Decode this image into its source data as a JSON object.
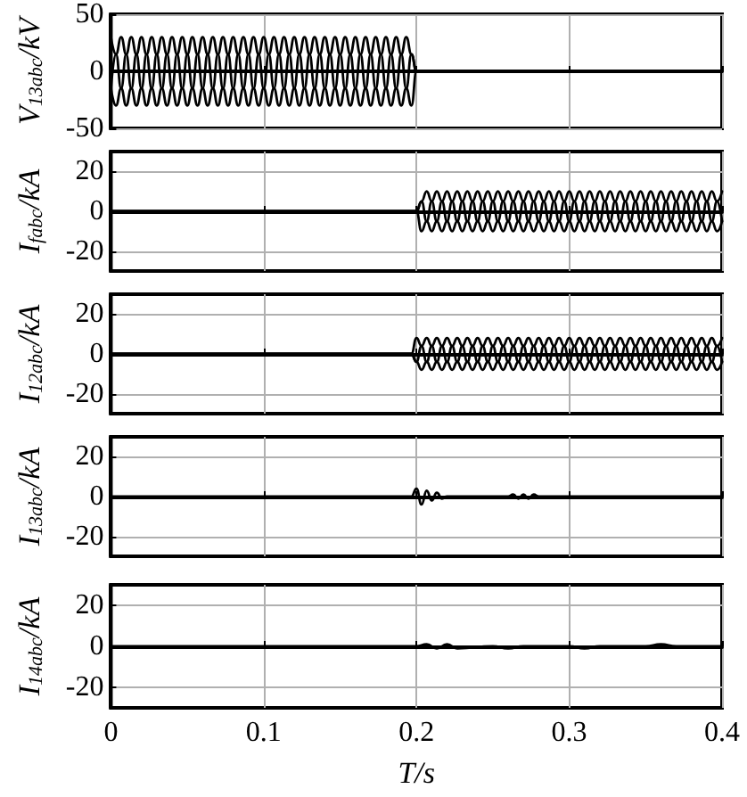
{
  "chart_data": [
    {
      "type": "line",
      "ylabel": "V$_{13abc}$/kV",
      "xlim": [
        0,
        0.4
      ],
      "xticks": [
        0,
        0.1,
        0.2,
        0.3,
        0.4
      ],
      "ylim": [
        -50,
        50
      ],
      "yticks": [
        -50,
        0,
        50
      ],
      "grid": true,
      "tick_labels": "y",
      "series": [
        {
          "color": "#000000",
          "x": [
            0,
            0.0033,
            0.0067,
            0.01,
            0.0133,
            0.0167,
            0.02,
            0.0233,
            0.0267,
            0.03,
            0.0333,
            0.0367,
            0.04,
            0.0433,
            0.0467,
            0.05,
            0.0533,
            0.0567,
            0.06,
            0.0633,
            0.0667,
            0.07,
            0.0733,
            0.0767,
            0.08,
            0.0833,
            0.0867,
            0.09,
            0.0933,
            0.0967,
            0.1,
            0.1033,
            0.1067,
            0.11,
            0.1133,
            0.1167,
            0.12,
            0.1233,
            0.1267,
            0.13,
            0.1333,
            0.1367,
            0.14,
            0.1433,
            0.1467,
            0.15,
            0.1533,
            0.1567,
            0.16,
            0.1633,
            0.1667,
            0.17,
            0.1733,
            0.1767,
            0.18,
            0.1833,
            0.1867,
            0.19,
            0.1933,
            0.1967,
            0.2,
            0.4
          ],
          "values": [
            30,
            15,
            -15,
            -30,
            -15,
            15,
            30,
            15,
            -15,
            -30,
            -15,
            15,
            30,
            15,
            -15,
            -30,
            -15,
            15,
            30,
            15,
            -15,
            -30,
            -15,
            15,
            30,
            15,
            -15,
            -30,
            -15,
            15,
            30,
            15,
            -15,
            -30,
            -15,
            15,
            30,
            15,
            -15,
            -30,
            -15,
            15,
            30,
            15,
            -15,
            -30,
            -15,
            15,
            30,
            15,
            -15,
            -30,
            -15,
            15,
            30,
            15,
            -15,
            -30,
            -15,
            15,
            0,
            0
          ]
        },
        {
          "color": "#000000",
          "x": [
            0,
            0.0033,
            0.0067,
            0.01,
            0.0133,
            0.0167,
            0.02,
            0.0233,
            0.0267,
            0.03,
            0.0333,
            0.0367,
            0.04,
            0.0433,
            0.0467,
            0.05,
            0.0533,
            0.0567,
            0.06,
            0.0633,
            0.0667,
            0.07,
            0.0733,
            0.0767,
            0.08,
            0.0833,
            0.0867,
            0.09,
            0.0933,
            0.0967,
            0.1,
            0.1033,
            0.1067,
            0.11,
            0.1133,
            0.1167,
            0.12,
            0.1233,
            0.1267,
            0.13,
            0.1333,
            0.1367,
            0.14,
            0.1433,
            0.1467,
            0.15,
            0.1533,
            0.1567,
            0.16,
            0.1633,
            0.1667,
            0.17,
            0.1733,
            0.1767,
            0.18,
            0.1833,
            0.1867,
            0.19,
            0.1933,
            0.1967,
            0.2,
            0.4
          ],
          "values": [
            -15,
            15,
            30,
            15,
            -15,
            -30,
            -15,
            15,
            30,
            15,
            -15,
            -30,
            -15,
            15,
            30,
            15,
            -15,
            -30,
            -15,
            15,
            30,
            15,
            -15,
            -30,
            -15,
            15,
            30,
            15,
            -15,
            -30,
            -15,
            15,
            30,
            15,
            -15,
            -30,
            -15,
            15,
            30,
            15,
            -15,
            -30,
            -15,
            15,
            30,
            15,
            -15,
            -30,
            -15,
            15,
            30,
            15,
            -15,
            -30,
            -15,
            15,
            30,
            15,
            -15,
            -30,
            0,
            0
          ]
        },
        {
          "color": "#000000",
          "x": [
            0,
            0.0033,
            0.0067,
            0.01,
            0.0133,
            0.0167,
            0.02,
            0.0233,
            0.0267,
            0.03,
            0.0333,
            0.0367,
            0.04,
            0.0433,
            0.0467,
            0.05,
            0.0533,
            0.0567,
            0.06,
            0.0633,
            0.0667,
            0.07,
            0.0733,
            0.0767,
            0.08,
            0.0833,
            0.0867,
            0.09,
            0.0933,
            0.0967,
            0.1,
            0.1033,
            0.1067,
            0.11,
            0.1133,
            0.1167,
            0.12,
            0.1233,
            0.1267,
            0.13,
            0.1333,
            0.1367,
            0.14,
            0.1433,
            0.1467,
            0.15,
            0.1533,
            0.1567,
            0.16,
            0.1633,
            0.1667,
            0.17,
            0.1733,
            0.1767,
            0.18,
            0.1833,
            0.1867,
            0.19,
            0.1933,
            0.1967,
            0.2,
            0.4
          ],
          "values": [
            -15,
            -30,
            -15,
            15,
            30,
            15,
            -15,
            -30,
            -15,
            15,
            30,
            15,
            -15,
            -30,
            -15,
            15,
            30,
            15,
            -15,
            -30,
            -15,
            15,
            30,
            15,
            -15,
            -30,
            -15,
            15,
            30,
            15,
            -15,
            -30,
            -15,
            15,
            30,
            15,
            -15,
            -30,
            -15,
            15,
            30,
            15,
            -15,
            -30,
            -15,
            15,
            30,
            15,
            -15,
            -30,
            -15,
            15,
            30,
            15,
            -15,
            -30,
            -15,
            15,
            30,
            15,
            0,
            0
          ]
        }
      ]
    },
    {
      "type": "line",
      "ylabel": "I$_{fabc}$/kA",
      "xlim": [
        0,
        0.4
      ],
      "xticks": [
        0,
        0.1,
        0.2,
        0.3,
        0.4
      ],
      "ylim": [
        -30,
        30
      ],
      "yticks": [
        -20,
        0,
        20
      ],
      "grid": true,
      "tick_labels": "y",
      "series": [
        {
          "color": "#000000",
          "x": [
            0,
            0.2,
            0.2033,
            0.2067,
            0.21,
            0.2133,
            0.2167,
            0.22,
            0.2233,
            0.2267,
            0.23,
            0.2333,
            0.2367,
            0.24,
            0.2433,
            0.2467,
            0.25,
            0.2533,
            0.2567,
            0.26,
            0.2633,
            0.2667,
            0.27,
            0.2733,
            0.2767,
            0.28,
            0.2833,
            0.2867,
            0.29,
            0.2933,
            0.2967,
            0.3,
            0.3033,
            0.3067,
            0.31,
            0.3133,
            0.3167,
            0.32,
            0.3233,
            0.3267,
            0.33,
            0.3333,
            0.3367,
            0.34,
            0.3433,
            0.3467,
            0.35,
            0.3533,
            0.3567,
            0.36,
            0.3633,
            0.3667,
            0.37,
            0.3733,
            0.3767,
            0.38,
            0.3833,
            0.3867,
            0.39,
            0.3933,
            0.3967,
            0.4
          ],
          "values": [
            0,
            0,
            5,
            -5,
            -10,
            -5,
            5,
            10,
            5,
            -5,
            -10,
            -5,
            5,
            10,
            5,
            -5,
            -10,
            -5,
            5,
            10,
            5,
            -5,
            -10,
            -5,
            5,
            10,
            5,
            -5,
            -10,
            -5,
            5,
            10,
            5,
            -5,
            -10,
            -5,
            5,
            10,
            5,
            -5,
            -10,
            -5,
            5,
            10,
            5,
            -5,
            -10,
            -5,
            5,
            10,
            5,
            -5,
            -10,
            -5,
            5,
            10,
            5,
            -5,
            -10,
            -5,
            5,
            10
          ]
        },
        {
          "color": "#000000",
          "x": [
            0,
            0.2,
            0.2033,
            0.2067,
            0.21,
            0.2133,
            0.2167,
            0.22,
            0.2233,
            0.2267,
            0.23,
            0.2333,
            0.2367,
            0.24,
            0.2433,
            0.2467,
            0.25,
            0.2533,
            0.2567,
            0.26,
            0.2633,
            0.2667,
            0.27,
            0.2733,
            0.2767,
            0.28,
            0.2833,
            0.2867,
            0.29,
            0.2933,
            0.2967,
            0.3,
            0.3033,
            0.3067,
            0.31,
            0.3133,
            0.3167,
            0.32,
            0.3233,
            0.3267,
            0.33,
            0.3333,
            0.3367,
            0.34,
            0.3433,
            0.3467,
            0.35,
            0.3533,
            0.3567,
            0.36,
            0.3633,
            0.3667,
            0.37,
            0.3733,
            0.3767,
            0.38,
            0.3833,
            0.3867,
            0.39,
            0.3933,
            0.3967,
            0.4
          ],
          "values": [
            0,
            0,
            5,
            10,
            5,
            -5,
            -10,
            -5,
            5,
            10,
            5,
            -5,
            -10,
            -5,
            5,
            10,
            5,
            -5,
            -10,
            -5,
            5,
            10,
            5,
            -5,
            -10,
            -5,
            5,
            10,
            5,
            -5,
            -10,
            -5,
            5,
            10,
            5,
            -5,
            -10,
            -5,
            5,
            10,
            5,
            -5,
            -10,
            -5,
            5,
            10,
            5,
            -5,
            -10,
            -5,
            5,
            10,
            5,
            -5,
            -10,
            -5,
            5,
            10,
            5,
            -5,
            -10,
            -5
          ]
        },
        {
          "color": "#000000",
          "x": [
            0,
            0.2,
            0.2033,
            0.2067,
            0.21,
            0.2133,
            0.2167,
            0.22,
            0.2233,
            0.2267,
            0.23,
            0.2333,
            0.2367,
            0.24,
            0.2433,
            0.2467,
            0.25,
            0.2533,
            0.2567,
            0.26,
            0.2633,
            0.2667,
            0.27,
            0.2733,
            0.2767,
            0.28,
            0.2833,
            0.2867,
            0.29,
            0.2933,
            0.2967,
            0.3,
            0.3033,
            0.3067,
            0.31,
            0.3133,
            0.3167,
            0.32,
            0.3233,
            0.3267,
            0.33,
            0.3333,
            0.3367,
            0.34,
            0.3433,
            0.3467,
            0.35,
            0.3533,
            0.3567,
            0.36,
            0.3633,
            0.3667,
            0.37,
            0.3733,
            0.3767,
            0.38,
            0.3833,
            0.3867,
            0.39,
            0.3933,
            0.3967,
            0.4
          ],
          "values": [
            0,
            0,
            -10,
            -5,
            5,
            10,
            5,
            -5,
            -10,
            -5,
            5,
            10,
            5,
            -5,
            -10,
            -5,
            5,
            10,
            5,
            -5,
            -10,
            -5,
            5,
            10,
            5,
            -5,
            -10,
            -5,
            5,
            10,
            5,
            -5,
            -10,
            -5,
            5,
            10,
            5,
            -5,
            -10,
            -5,
            5,
            10,
            5,
            -5,
            -10,
            -5,
            5,
            10,
            5,
            -5,
            -10,
            -5,
            5,
            10,
            5,
            -5,
            -10,
            -5,
            5,
            10,
            5,
            -5
          ]
        }
      ]
    },
    {
      "type": "line",
      "ylabel": "I$_{12abc}$/kA",
      "xlim": [
        0,
        0.4
      ],
      "xticks": [
        0,
        0.1,
        0.2,
        0.3,
        0.4
      ],
      "ylim": [
        -30,
        30
      ],
      "yticks": [
        -20,
        0,
        20
      ],
      "grid": true,
      "tick_labels": "y",
      "series": [
        {
          "color": "#000000",
          "x": [
            0,
            0.1967,
            0.2,
            0.2033,
            0.2067,
            0.21,
            0.2133,
            0.2167,
            0.22,
            0.2233,
            0.2267,
            0.23,
            0.2333,
            0.2367,
            0.24,
            0.2433,
            0.2467,
            0.25,
            0.2533,
            0.2567,
            0.26,
            0.2633,
            0.2667,
            0.27,
            0.2733,
            0.2767,
            0.28,
            0.2833,
            0.2867,
            0.29,
            0.2933,
            0.2967,
            0.3,
            0.3033,
            0.3067,
            0.31,
            0.3133,
            0.3167,
            0.32,
            0.3233,
            0.3267,
            0.33,
            0.3333,
            0.3367,
            0.34,
            0.3433,
            0.3467,
            0.35,
            0.3533,
            0.3567,
            0.36,
            0.3633,
            0.3667,
            0.37,
            0.3733,
            0.3767,
            0.38,
            0.3833,
            0.3867,
            0.39,
            0.3933,
            0.3967,
            0.4
          ],
          "values": [
            0,
            0,
            8,
            4,
            -4,
            -8,
            -4,
            4,
            8,
            4,
            -4,
            -8,
            -4,
            4,
            8,
            4,
            -4,
            -8,
            -4,
            4,
            8,
            4,
            -4,
            -8,
            -4,
            4,
            8,
            4,
            -4,
            -8,
            -4,
            4,
            8,
            4,
            -4,
            -8,
            -4,
            4,
            8,
            4,
            -4,
            -8,
            -4,
            4,
            8,
            4,
            -4,
            -8,
            -4,
            4,
            8,
            4,
            -4,
            -8,
            -4,
            4,
            8,
            4,
            -4,
            -8,
            -4,
            4,
            8
          ]
        },
        {
          "color": "#000000",
          "x": [
            0,
            0.1967,
            0.2,
            0.2033,
            0.2067,
            0.21,
            0.2133,
            0.2167,
            0.22,
            0.2233,
            0.2267,
            0.23,
            0.2333,
            0.2367,
            0.24,
            0.2433,
            0.2467,
            0.25,
            0.2533,
            0.2567,
            0.26,
            0.2633,
            0.2667,
            0.27,
            0.2733,
            0.2767,
            0.28,
            0.2833,
            0.2867,
            0.29,
            0.2933,
            0.2967,
            0.3,
            0.3033,
            0.3067,
            0.31,
            0.3133,
            0.3167,
            0.32,
            0.3233,
            0.3267,
            0.33,
            0.3333,
            0.3367,
            0.34,
            0.3433,
            0.3467,
            0.35,
            0.3533,
            0.3567,
            0.36,
            0.3633,
            0.3667,
            0.37,
            0.3733,
            0.3767,
            0.38,
            0.3833,
            0.3867,
            0.39,
            0.3933,
            0.3967,
            0.4
          ],
          "values": [
            0,
            0,
            -4,
            4,
            8,
            4,
            -4,
            -8,
            -4,
            4,
            8,
            4,
            -4,
            -8,
            -4,
            4,
            8,
            4,
            -4,
            -8,
            -4,
            4,
            8,
            4,
            -4,
            -8,
            -4,
            4,
            8,
            4,
            -4,
            -8,
            -4,
            4,
            8,
            4,
            -4,
            -8,
            -4,
            4,
            8,
            4,
            -4,
            -8,
            -4,
            4,
            8,
            4,
            -4,
            -8,
            -4,
            4,
            8,
            4,
            -4,
            -8,
            -4,
            4,
            8,
            4,
            -4,
            -8,
            -4
          ]
        },
        {
          "color": "#000000",
          "x": [
            0,
            0.1967,
            0.2,
            0.2033,
            0.2067,
            0.21,
            0.2133,
            0.2167,
            0.22,
            0.2233,
            0.2267,
            0.23,
            0.2333,
            0.2367,
            0.24,
            0.2433,
            0.2467,
            0.25,
            0.2533,
            0.2567,
            0.26,
            0.2633,
            0.2667,
            0.27,
            0.2733,
            0.2767,
            0.28,
            0.2833,
            0.2867,
            0.29,
            0.2933,
            0.2967,
            0.3,
            0.3033,
            0.3067,
            0.31,
            0.3133,
            0.3167,
            0.32,
            0.3233,
            0.3267,
            0.33,
            0.3333,
            0.3367,
            0.34,
            0.3433,
            0.3467,
            0.35,
            0.3533,
            0.3567,
            0.36,
            0.3633,
            0.3667,
            0.37,
            0.3733,
            0.3767,
            0.38,
            0.3833,
            0.3867,
            0.39,
            0.3933,
            0.3967,
            0.4
          ],
          "values": [
            0,
            0,
            -4,
            -8,
            -4,
            4,
            8,
            4,
            -4,
            -8,
            -4,
            4,
            8,
            4,
            -4,
            -8,
            -4,
            4,
            8,
            4,
            -4,
            -8,
            -4,
            4,
            8,
            4,
            -4,
            -8,
            -4,
            4,
            8,
            4,
            -4,
            -8,
            -4,
            4,
            8,
            4,
            -4,
            -8,
            -4,
            4,
            8,
            4,
            -4,
            -8,
            -4,
            4,
            8,
            4,
            -4,
            -8,
            -4,
            4,
            8,
            4,
            -4,
            -8,
            -4,
            4,
            8,
            4,
            -4
          ]
        }
      ]
    },
    {
      "type": "line",
      "ylabel": "I$_{13abc}$/kA",
      "xlim": [
        0,
        0.4
      ],
      "xticks": [
        0,
        0.1,
        0.2,
        0.3,
        0.4
      ],
      "ylim": [
        -30,
        30
      ],
      "yticks": [
        -20,
        0,
        20
      ],
      "grid": true,
      "tick_labels": "y",
      "series": [
        {
          "color": "#000000",
          "x": [
            0,
            0.1967,
            0.2,
            0.2033,
            0.2067,
            0.21,
            0.2133,
            0.2167,
            0.22,
            0.26,
            0.2633,
            0.2667,
            0.27,
            0.2733,
            0.2767,
            0.28,
            0.4
          ],
          "values": [
            0,
            0,
            4,
            -4,
            3,
            -2,
            2,
            -1,
            0,
            0,
            1,
            -1,
            1,
            -1,
            1,
            0,
            0
          ]
        }
      ]
    },
    {
      "type": "line",
      "ylabel": "I$_{14abc}$/kA",
      "xlabel": "T/s",
      "xlim": [
        0,
        0.4
      ],
      "xticks": [
        0,
        0.1,
        0.2,
        0.3,
        0.4
      ],
      "ylim": [
        -30,
        30
      ],
      "yticks": [
        -20,
        0,
        20
      ],
      "grid": true,
      "series": [
        {
          "color": "#000000",
          "x": [
            0,
            0.2,
            0.2067,
            0.2133,
            0.22,
            0.2267,
            0.25,
            0.26,
            0.27,
            0.3,
            0.31,
            0.32,
            0.35,
            0.36,
            0.37,
            0.4
          ],
          "values": [
            0,
            0,
            1,
            -1,
            1,
            -1,
            0,
            -1,
            0,
            0,
            -1,
            0,
            0,
            1,
            0,
            0
          ]
        }
      ]
    }
  ]
}
